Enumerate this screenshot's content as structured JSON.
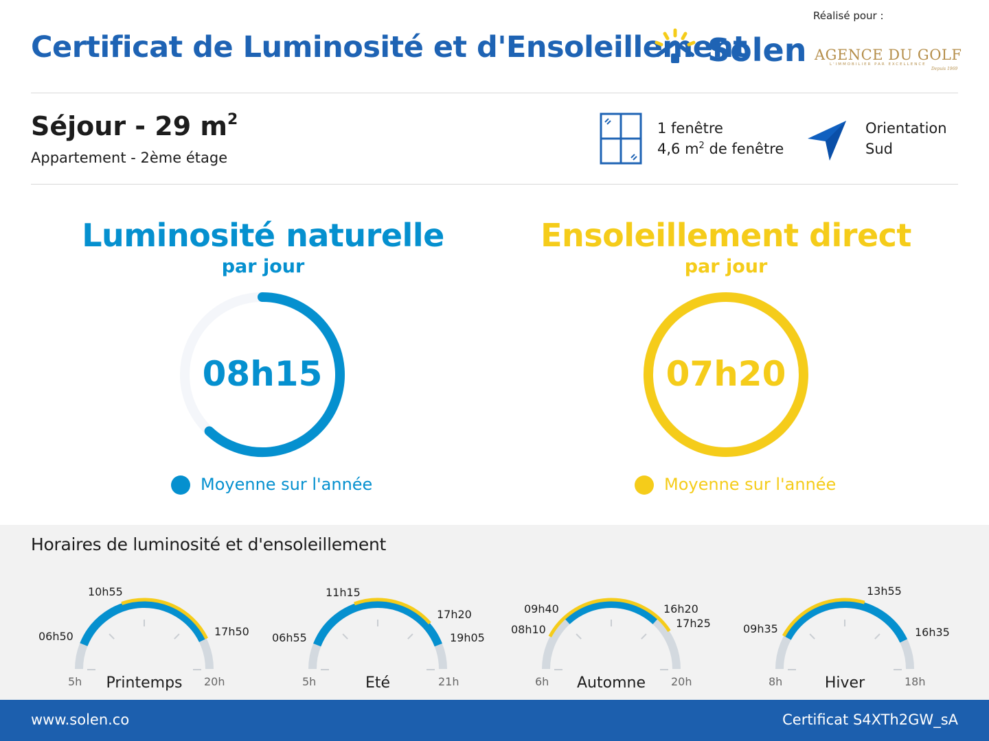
{
  "header": {
    "title": "Certificat de Luminosité et d'Ensoleillement",
    "brand": "Solen",
    "realise_pour": "Réalisé pour :",
    "partner": {
      "name": "AGENCE DU GOLF",
      "tagline": "L'IMMOBILIER PAR EXCELLENCE",
      "signature": "Depuis 1969"
    }
  },
  "room": {
    "name": "Séjour - 29 m",
    "name_sup": "2",
    "subtitle": "Appartement - 2ème étage",
    "windows_count": "1 fenêtre",
    "window_area_value": "4,6 m",
    "window_area_sup": "2",
    "window_area_suffix": " de fenêtre",
    "orientation_label": "Orientation",
    "orientation_value": "Sud"
  },
  "stats": {
    "luminosite": {
      "title": "Luminosité naturelle",
      "subtitle": "par jour",
      "value": "08h15",
      "fraction": 0.62,
      "legend": "Moyenne sur l'année",
      "color": "#0590cf"
    },
    "ensoleillement": {
      "title": "Ensoleillement direct",
      "subtitle": "par jour",
      "value": "07h20",
      "fraction": 1.0,
      "legend": "Moyenne sur l'année",
      "color": "#f5cc1a"
    }
  },
  "schedule": {
    "title": "Horaires de luminosité et d'ensoleillement",
    "seasons": [
      {
        "name": "Printemps",
        "start": "5h",
        "end": "20h",
        "range_start": 5,
        "range_end": 20,
        "light_start": "06h50",
        "light_end": "17h50",
        "sun_start": "10h55",
        "sun_end": null,
        "light_start_v": 6.83,
        "light_end_v": 17.83,
        "sun_start_v": 10.92,
        "sun_end_v": 17.83
      },
      {
        "name": "Eté",
        "start": "5h",
        "end": "21h",
        "range_start": 5,
        "range_end": 21,
        "light_start": "06h55",
        "light_end": "19h05",
        "sun_start": "11h15",
        "sun_end": "17h20",
        "light_start_v": 6.92,
        "light_end_v": 19.08,
        "sun_start_v": 11.25,
        "sun_end_v": 17.33
      },
      {
        "name": "Automne",
        "start": "6h",
        "end": "20h",
        "range_start": 6,
        "range_end": 20,
        "light_start": "09h40",
        "light_end": "16h20",
        "sun_start": "08h10",
        "sun_end": "17h25",
        "light_start_v": 9.67,
        "light_end_v": 16.33,
        "sun_start_v": 8.17,
        "sun_end_v": 17.42
      },
      {
        "name": "Hiver",
        "start": "8h",
        "end": "18h",
        "range_start": 8,
        "range_end": 18,
        "light_start": "09h35",
        "light_end": "16h35",
        "sun_start": "09h35",
        "sun_end": "13h55",
        "light_start_v": 9.58,
        "light_end_v": 16.58,
        "sun_start_v": 9.58,
        "sun_end_v": 13.92
      }
    ]
  },
  "footer": {
    "website": "www.solen.co",
    "certificate": "Certificat S4XTh2GW_sA"
  },
  "colors": {
    "brand_blue": "#1e63b4",
    "light_blue": "#0590cf",
    "sun_yellow": "#f5cc1a",
    "footer_blue": "#1c5fae"
  }
}
